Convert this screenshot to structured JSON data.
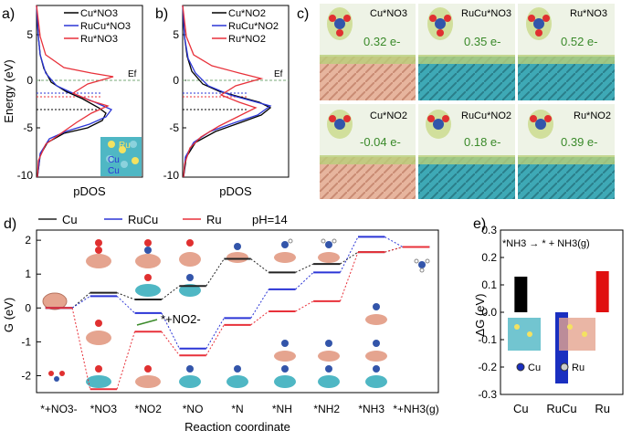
{
  "panel_a": {
    "label": "a)",
    "legend": [
      "Cu*NO3",
      "RuCu*NO3",
      "Ru*NO3"
    ],
    "ef": "Ef",
    "xlabel": "pDOS",
    "ylabel": "Energy (eV)",
    "yticks": [
      "5",
      "0",
      "-5",
      "-10"
    ],
    "inset_labels": [
      "Ru",
      "Cu",
      "Cu"
    ],
    "colors": [
      "#000000",
      "#2b35d6",
      "#e8313a"
    ]
  },
  "panel_b": {
    "label": "b)",
    "legend": [
      "Cu*NO2",
      "RuCu*NO2",
      "Ru*NO2"
    ],
    "ef": "Ef",
    "xlabel": "pDOS",
    "yticks": [
      "5",
      "0",
      "-5",
      "-10"
    ]
  },
  "panel_c": {
    "label": "c)",
    "cells": [
      {
        "name": "Cu*NO3",
        "charge": "0.32 e-"
      },
      {
        "name": "RuCu*NO3",
        "charge": "0.35 e-"
      },
      {
        "name": "Ru*NO3",
        "charge": "0.52 e-"
      },
      {
        "name": "Cu*NO2",
        "charge": "-0.04 e-"
      },
      {
        "name": "RuCu*NO2",
        "charge": "0.18 e-"
      },
      {
        "name": "Ru*NO2",
        "charge": "0.39 e-"
      }
    ]
  },
  "chart_data": [
    {
      "type": "line",
      "panel": "d)",
      "legend": [
        "Cu",
        "RuCu",
        "Ru"
      ],
      "condition": "pH=14",
      "ylabel": "G (eV)",
      "xlabel": "Reaction coordinate",
      "categories": [
        "*+NO3-",
        "*NO3",
        "*NO2",
        "*NO",
        "*N",
        "*NH",
        "*NH2",
        "*NH3",
        "*+NH3(g)"
      ],
      "yticks": [
        "2",
        "1",
        "0",
        "-1",
        "-2"
      ],
      "ylim": [
        -2.5,
        2.3
      ],
      "annotation": "*+NO2-",
      "series": [
        {
          "name": "Cu",
          "color": "#222222",
          "values": [
            0,
            0.45,
            0.25,
            0.65,
            1.45,
            1.05,
            1.3,
            1.65,
            1.8
          ]
        },
        {
          "name": "RuCu",
          "color": "#2b35d6",
          "values": [
            0,
            0.35,
            -0.15,
            -1.2,
            -0.3,
            0.55,
            1.05,
            2.1,
            1.8
          ]
        },
        {
          "name": "Ru",
          "color": "#e8313a",
          "values": [
            0,
            -2.4,
            -0.7,
            -1.4,
            -0.5,
            -0.1,
            0.2,
            1.65,
            1.8
          ]
        }
      ]
    },
    {
      "type": "bar",
      "panel": "e)",
      "title": "*NH3 → * + NH3(g)",
      "ylabel": "ΔG (eV)",
      "categories": [
        "Cu",
        "RuCu",
        "Ru"
      ],
      "values": [
        0.13,
        -0.26,
        0.15
      ],
      "colors": [
        "#000000",
        "#1a2fc0",
        "#e01010"
      ],
      "ylim": [
        -0.3,
        0.3
      ],
      "yticks": [
        "0.3",
        "0.2",
        "0.1",
        "0.0",
        "-0.1",
        "-0.2",
        "-0.3"
      ],
      "inset_legend": [
        "Cu",
        "Ru"
      ]
    }
  ]
}
